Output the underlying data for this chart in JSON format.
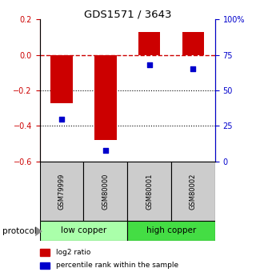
{
  "title": "GDS1571 / 3643",
  "samples": [
    "GSM79999",
    "GSM80000",
    "GSM80001",
    "GSM80002"
  ],
  "log2_ratios": [
    -0.27,
    -0.48,
    0.13,
    0.13
  ],
  "percentile_ranks": [
    30,
    8,
    68,
    65
  ],
  "ylim_left": [
    -0.6,
    0.2
  ],
  "ylim_right": [
    0,
    100
  ],
  "left_yticks": [
    -0.6,
    -0.4,
    -0.2,
    0.0,
    0.2
  ],
  "right_yticks": [
    0,
    25,
    50,
    75,
    100
  ],
  "right_yticklabels": [
    "0",
    "25",
    "50",
    "75",
    "100%"
  ],
  "bar_color": "#cc0000",
  "dot_color": "#0000cc",
  "dashed_line_color": "#cc0000",
  "groups": [
    {
      "label": "low copper",
      "samples": [
        0,
        1
      ],
      "color": "#aaffaa"
    },
    {
      "label": "high copper",
      "samples": [
        2,
        3
      ],
      "color": "#44dd44"
    }
  ],
  "protocol_label": "protocol",
  "legend_bar_label": "log2 ratio",
  "legend_dot_label": "percentile rank within the sample",
  "bg_color": "#ffffff",
  "sample_box_color": "#cccccc",
  "bar_width": 0.5
}
